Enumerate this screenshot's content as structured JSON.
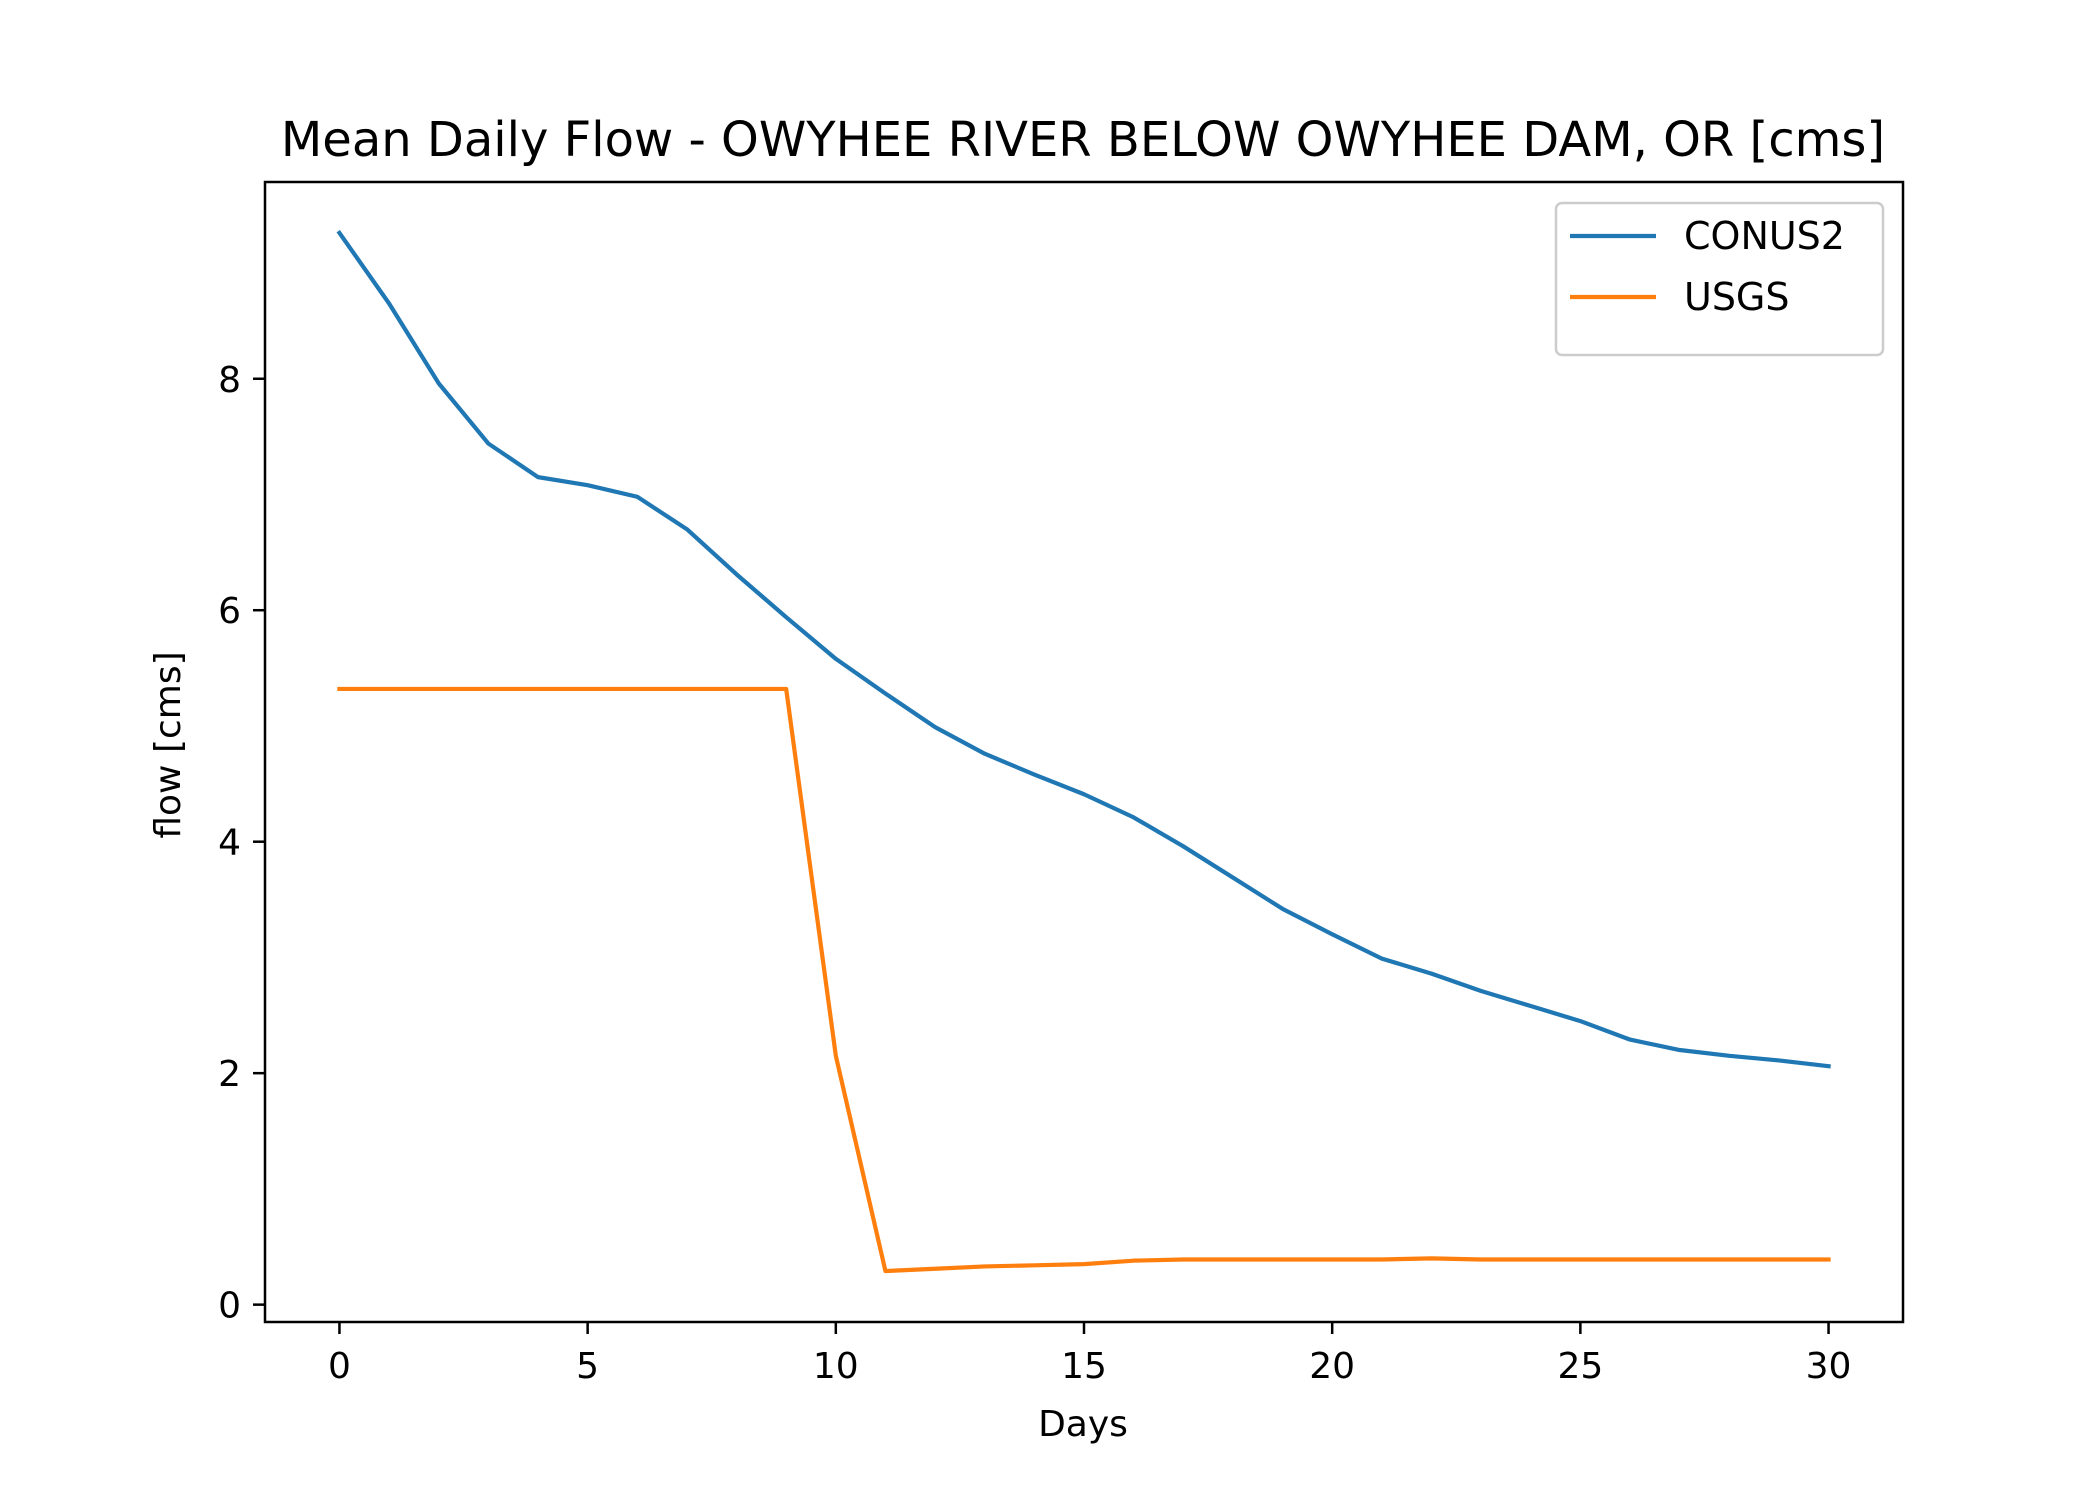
{
  "chart_data": {
    "type": "line",
    "title": "Mean Daily Flow - OWYHEE RIVER BELOW OWYHEE DAM, OR [cms]",
    "xlabel": "Days",
    "ylabel": "flow [cms]",
    "xlim": [
      -1.5,
      31.5
    ],
    "ylim": [
      -0.15,
      9.7
    ],
    "xticks": [
      0,
      5,
      10,
      15,
      20,
      25,
      30
    ],
    "yticks": [
      0,
      2,
      4,
      6,
      8
    ],
    "grid": false,
    "legend_position": "top-right",
    "x": [
      0,
      1,
      2,
      3,
      4,
      5,
      6,
      7,
      8,
      9,
      10,
      11,
      12,
      13,
      14,
      15,
      16,
      17,
      18,
      19,
      20,
      21,
      22,
      23,
      24,
      25,
      26,
      27,
      28,
      29,
      30
    ],
    "series": [
      {
        "name": "CONUS2",
        "color": "#1f77b4",
        "values": [
          9.26,
          8.65,
          7.96,
          7.44,
          7.15,
          7.08,
          6.98,
          6.7,
          6.31,
          5.94,
          5.58,
          5.28,
          4.99,
          4.76,
          4.58,
          4.41,
          4.21,
          3.96,
          3.69,
          3.42,
          3.2,
          2.99,
          2.86,
          2.71,
          2.58,
          2.45,
          2.29,
          2.2,
          2.15,
          2.11,
          2.06
        ]
      },
      {
        "name": "USGS",
        "color": "#ff7f0e",
        "values": [
          5.32,
          5.32,
          5.32,
          5.32,
          5.32,
          5.32,
          5.32,
          5.32,
          5.32,
          5.32,
          2.15,
          0.29,
          0.31,
          0.33,
          0.34,
          0.35,
          0.38,
          0.39,
          0.39,
          0.39,
          0.39,
          0.39,
          0.4,
          0.39,
          0.39,
          0.39,
          0.39,
          0.39,
          0.39,
          0.39,
          0.39
        ]
      }
    ]
  }
}
